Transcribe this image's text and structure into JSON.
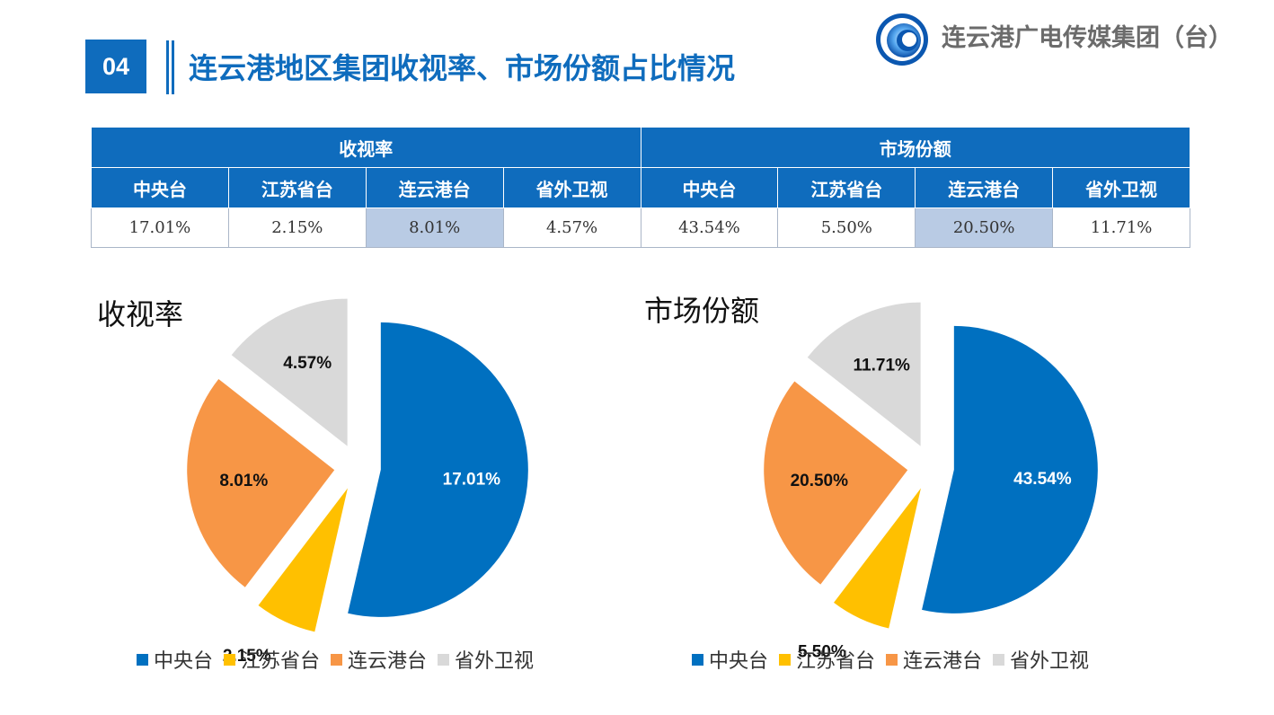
{
  "header": {
    "section_number": "04",
    "title": "连云港地区集团收视率、市场份额占比情况",
    "org_name": "连云港广电传媒集团（台）"
  },
  "table": {
    "groups": [
      "收视率",
      "市场份额"
    ],
    "columns": [
      "中央台",
      "江苏省台",
      "连云港台",
      "省外卫视",
      "中央台",
      "江苏省台",
      "连云港台",
      "省外卫视"
    ],
    "values": [
      "17.01%",
      "2.15%",
      "8.01%",
      "4.57%",
      "43.54%",
      "5.50%",
      "20.50%",
      "11.71%"
    ]
  },
  "colors": {
    "accent": "#0f6cbd",
    "series": [
      "#0070c0",
      "#ffc000",
      "#f79646",
      "#d9d9d9"
    ]
  },
  "chart_data": [
    {
      "type": "pie",
      "title": "收视率",
      "categories": [
        "中央台",
        "江苏省台",
        "连云港台",
        "省外卫视"
      ],
      "values": [
        17.01,
        2.15,
        8.01,
        4.57
      ],
      "labels": [
        "17.01%",
        "2.15%",
        "8.01%",
        "4.57%"
      ],
      "legend": "bottom",
      "exploded": true
    },
    {
      "type": "pie",
      "title": "市场份额",
      "categories": [
        "中央台",
        "江苏省台",
        "连云港台",
        "省外卫视"
      ],
      "values": [
        43.54,
        5.5,
        20.5,
        11.71
      ],
      "labels": [
        "43.54%",
        "5.50%",
        "20.50%",
        "11.71%"
      ],
      "legend": "bottom",
      "exploded": true
    }
  ]
}
